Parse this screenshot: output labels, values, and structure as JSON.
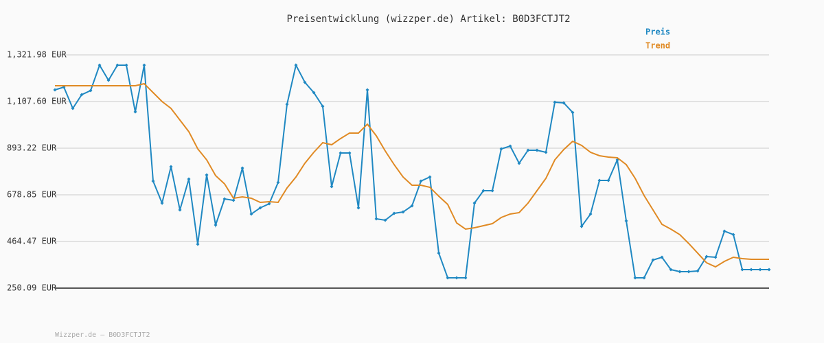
{
  "chart_data": {
    "type": "line",
    "title": "Preisentwicklung (wizzper.de) Artikel: B0D3FCTJT2",
    "footer": "Wizzper.de – B0D3FCTJT2",
    "ylim": [
      250.09,
      1321.98
    ],
    "yticks": [
      {
        "value": 250.09,
        "label": "250.09 EUR"
      },
      {
        "value": 464.47,
        "label": "464.47 EUR"
      },
      {
        "value": 678.85,
        "label": "678.85 EUR"
      },
      {
        "value": 893.22,
        "label": "893.22 EUR"
      },
      {
        "value": 1107.6,
        "label": "1,107.60 EUR"
      },
      {
        "value": 1321.98,
        "label": "1,321.98 EUR"
      }
    ],
    "grid": true,
    "legend": "top-right",
    "series": [
      {
        "name": "Preis",
        "color": "#1f88c2",
        "markers": true,
        "values": [
          1161.2,
          1173.8,
          1076.1,
          1139.1,
          1158.0,
          1274.7,
          1205.3,
          1274.7,
          1274.7,
          1060.3,
          1274.7,
          741.9,
          641.0,
          808.1,
          609.5,
          751.4,
          451.9,
          770.3,
          540.1,
          659.9,
          653.6,
          801.8,
          590.6,
          619.0,
          637.9,
          735.6,
          1095.0,
          1274.7,
          1195.9,
          1148.6,
          1085.5,
          716.7,
          871.2,
          871.2,
          619.0,
          1161.2,
          568.5,
          562.2,
          593.7,
          600.0,
          628.4,
          741.9,
          760.8,
          410.9,
          297.4,
          297.4,
          297.4,
          641.0,
          697.8,
          697.8,
          890.1,
          902.7,
          823.9,
          883.8,
          883.8,
          874.3,
          1104.5,
          1101.3,
          1057.2,
          533.8,
          590.6,
          745.1,
          745.1,
          839.6,
          559.1,
          297.4,
          297.4,
          379.4,
          392.0,
          335.2,
          325.8,
          325.8,
          328.9,
          395.1,
          392.0,
          511.8,
          496.0,
          335.2,
          335.2,
          335.2,
          335.2
        ]
      },
      {
        "name": "Trend",
        "color": "#e08a24",
        "markers": false,
        "values": [
          1180.1,
          1180.1,
          1180.1,
          1180.1,
          1180.1,
          1180.1,
          1180.1,
          1180.1,
          1180.1,
          1180.1,
          1189.6,
          1148.6,
          1107.6,
          1076.1,
          1022.5,
          969.0,
          890.1,
          839.6,
          767.1,
          729.3,
          663.1,
          669.4,
          663.1,
          644.2,
          647.3,
          644.2,
          710.4,
          760.8,
          823.9,
          874.3,
          918.5,
          909.0,
          937.4,
          962.6,
          962.6,
          1003.6,
          950.0,
          880.6,
          817.6,
          760.8,
          723.0,
          723.0,
          713.5,
          672.5,
          634.7,
          549.6,
          521.2,
          527.5,
          537.0,
          546.4,
          574.8,
          590.6,
          596.9,
          641.0,
          697.8,
          754.5,
          839.6,
          886.9,
          924.8,
          905.8,
          874.3,
          858.6,
          852.2,
          849.1,
          817.6,
          754.5,
          675.7,
          609.5,
          543.3,
          521.2,
          496.0,
          455.0,
          410.9,
          366.7,
          347.8,
          373.0,
          392.0,
          385.7,
          382.5,
          382.5,
          382.5
        ]
      }
    ]
  }
}
